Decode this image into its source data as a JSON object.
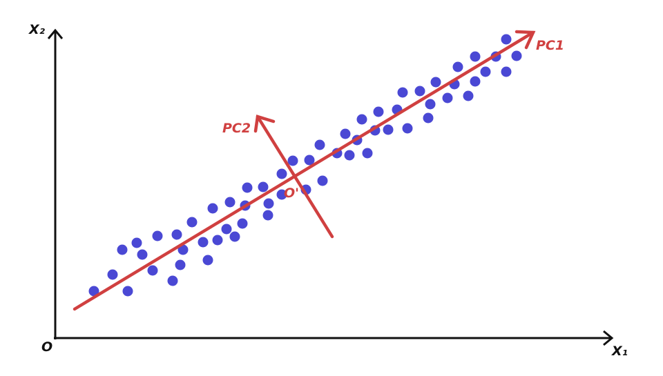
{
  "axes": {
    "x_label": "X₁",
    "y_label": "X₂",
    "origin_label": "O"
  },
  "pc1": {
    "label": "PC1"
  },
  "pc2": {
    "label": "PC2"
  },
  "center": {
    "label": "O'"
  },
  "colors": {
    "axis": "#111111",
    "points": "#4a48d4",
    "components": "#d04040"
  },
  "points": [
    [
      136,
      422
    ],
    [
      163,
      398
    ],
    [
      185,
      422
    ],
    [
      177,
      362
    ],
    [
      198,
      352
    ],
    [
      206,
      369
    ],
    [
      221,
      392
    ],
    [
      228,
      342
    ],
    [
      250,
      407
    ],
    [
      261,
      384
    ],
    [
      265,
      362
    ],
    [
      256,
      340
    ],
    [
      278,
      322
    ],
    [
      301,
      377
    ],
    [
      294,
      351
    ],
    [
      315,
      348
    ],
    [
      308,
      302
    ],
    [
      328,
      332
    ],
    [
      340,
      343
    ],
    [
      351,
      324
    ],
    [
      333,
      293
    ],
    [
      355,
      298
    ],
    [
      358,
      272
    ],
    [
      381,
      271
    ],
    [
      389,
      295
    ],
    [
      388,
      312
    ],
    [
      408,
      282
    ],
    [
      408,
      252
    ],
    [
      424,
      233
    ],
    [
      443,
      275
    ],
    [
      448,
      232
    ],
    [
      463,
      210
    ],
    [
      467,
      262
    ],
    [
      488,
      222
    ],
    [
      500,
      194
    ],
    [
      506,
      225
    ],
    [
      517,
      203
    ],
    [
      532,
      222
    ],
    [
      524,
      173
    ],
    [
      543,
      189
    ],
    [
      548,
      162
    ],
    [
      562,
      188
    ],
    [
      575,
      159
    ],
    [
      583,
      134
    ],
    [
      590,
      186
    ],
    [
      608,
      132
    ],
    [
      623,
      151
    ],
    [
      620,
      171
    ],
    [
      631,
      119
    ],
    [
      648,
      142
    ],
    [
      658,
      122
    ],
    [
      663,
      97
    ],
    [
      678,
      139
    ],
    [
      688,
      82
    ],
    [
      688,
      118
    ],
    [
      703,
      104
    ],
    [
      718,
      82
    ],
    [
      733,
      57
    ],
    [
      733,
      104
    ],
    [
      748,
      81
    ]
  ]
}
